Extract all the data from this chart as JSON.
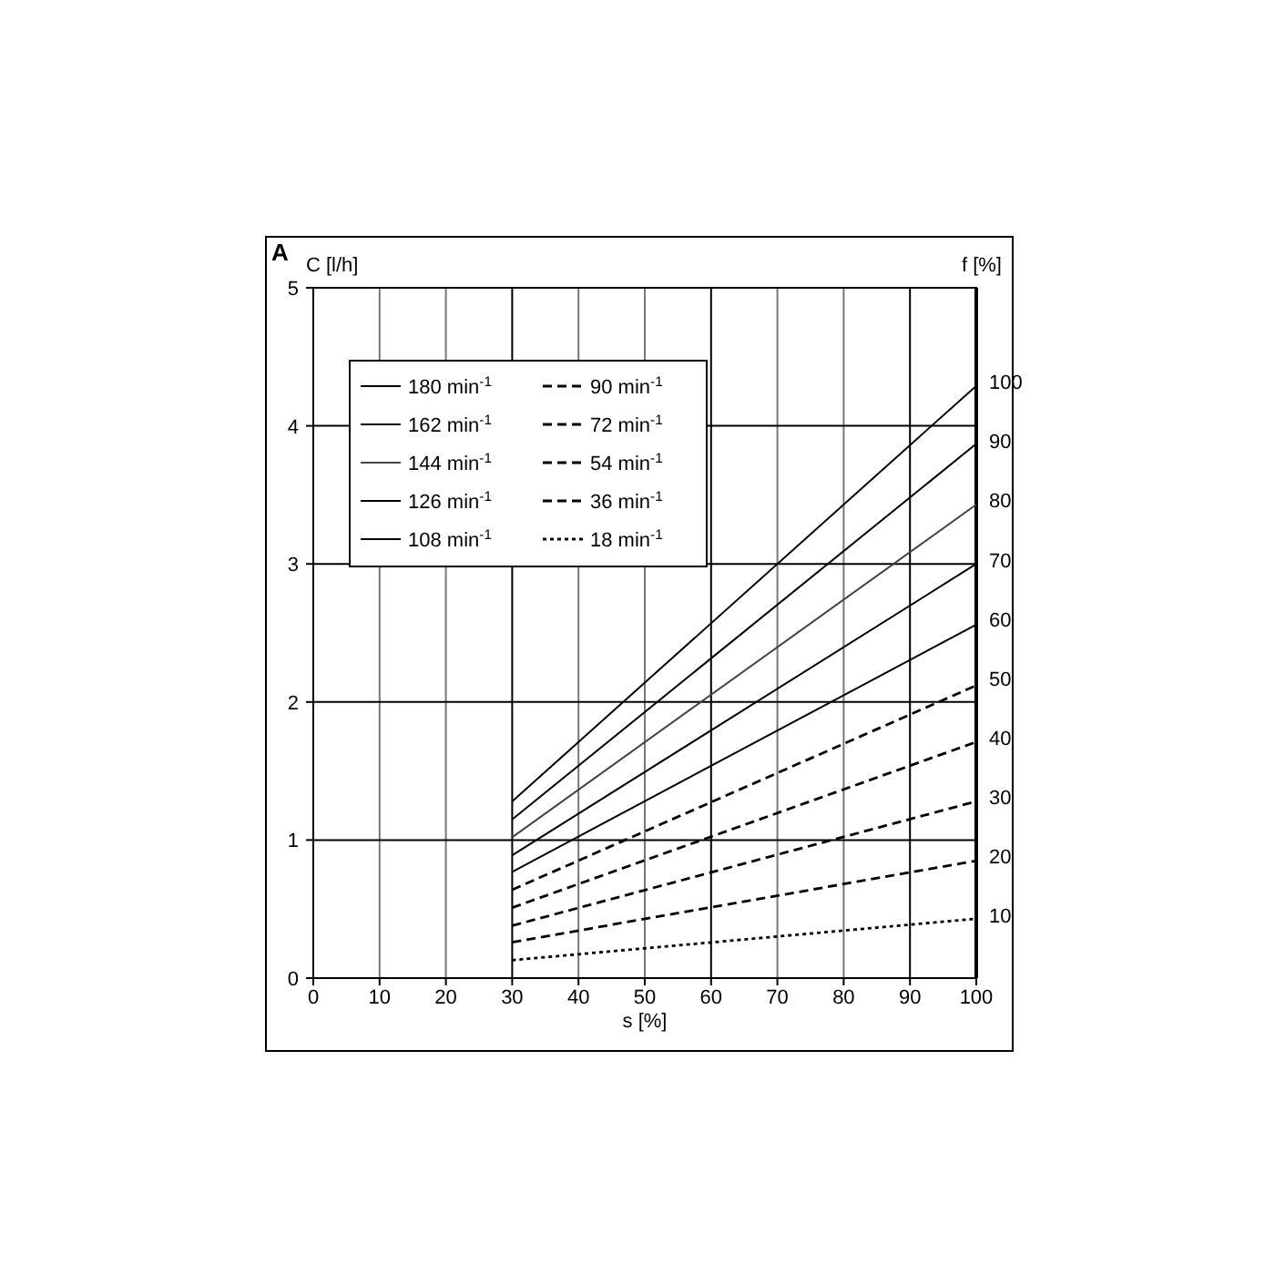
{
  "chart_data": {
    "type": "line",
    "xlabel": "s [%]",
    "ylabel": "C [l/h]",
    "y2label": "f [%]",
    "annotations": [
      "A"
    ],
    "x": [
      30,
      100
    ],
    "xlim": [
      0,
      100
    ],
    "xticks": [
      0,
      10,
      20,
      30,
      40,
      50,
      60,
      70,
      80,
      90,
      100
    ],
    "ylim": [
      0,
      5
    ],
    "yticks": [
      0,
      1,
      2,
      3,
      4,
      5
    ],
    "y2lim": [
      0,
      116.5
    ],
    "y2ticks": [
      10,
      20,
      30,
      40,
      50,
      60,
      70,
      80,
      90,
      100
    ],
    "grid": true,
    "legend": "top left",
    "series": [
      {
        "name": "180 min$^{-1}$",
        "color": "#000000",
        "values": [
          1.28,
          4.29
        ],
        "line_style": "solid"
      },
      {
        "name": "162 min$^{-1}$",
        "color": "#000000",
        "values": [
          1.15,
          3.87
        ],
        "line_style": "solid"
      },
      {
        "name": "144 min$^{-1}$",
        "color": "#444444",
        "values": [
          1.02,
          3.43
        ],
        "line_style": "solid"
      },
      {
        "name": "126 min$^{-1}$",
        "color": "#000000",
        "values": [
          0.89,
          3.0
        ],
        "line_style": "solid"
      },
      {
        "name": "108 min$^{-1}$",
        "color": "#000000",
        "values": [
          0.77,
          2.56
        ],
        "line_style": "solid"
      },
      {
        "name": "90 min$^{-1}$",
        "color": "#000000",
        "values": [
          0.64,
          2.12
        ],
        "line_style": "dashed"
      },
      {
        "name": "72 min$^{-1}$",
        "color": "#000000",
        "values": [
          0.51,
          1.71
        ],
        "line_style": "dashed"
      },
      {
        "name": "54 min$^{-1}$",
        "color": "#000000",
        "values": [
          0.38,
          1.28
        ],
        "line_style": "dashed"
      },
      {
        "name": "36 min$^{-1}$",
        "color": "#000000",
        "values": [
          0.26,
          0.85
        ],
        "line_style": "dashed"
      },
      {
        "name": "18 min$^{-1}$",
        "color": "#000000",
        "values": [
          0.13,
          0.43
        ],
        "line_style": "dotted"
      }
    ]
  }
}
